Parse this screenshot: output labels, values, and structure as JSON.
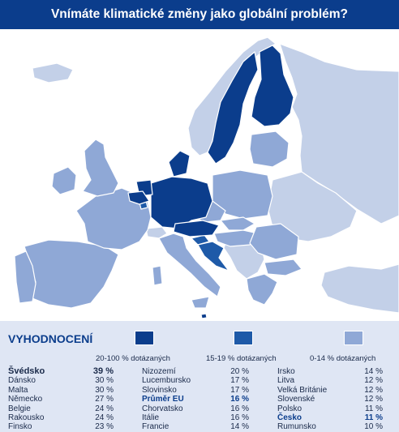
{
  "title": "Vnímáte klimatické změny jako globální problém?",
  "colors": {
    "title_bg": "#0b3d8c",
    "sea": "#ffffff",
    "background": "#dfe6f4",
    "cat_high": "#0b3d8c",
    "cat_mid": "#1e5aa8",
    "cat_low": "#8fa8d6",
    "nodata": "#c3d0e8"
  },
  "legend": {
    "heading": "VYHODNOCENÍ",
    "categories": [
      {
        "label": "20-100 % dotázaných",
        "color": "#0b3d8c"
      },
      {
        "label": "15-19 % dotázaných",
        "color": "#1e5aa8"
      },
      {
        "label": "0-14 % dotázaných",
        "color": "#8fa8d6"
      }
    ]
  },
  "columns": [
    [
      {
        "country": "Švédsko",
        "value": "39 %"
      },
      {
        "country": "Dánsko",
        "value": "30 %"
      },
      {
        "country": "Malta",
        "value": "30 %"
      },
      {
        "country": "Německo",
        "value": "27 %"
      },
      {
        "country": "Belgie",
        "value": "24 %"
      },
      {
        "country": "Rakousko",
        "value": "24 %"
      },
      {
        "country": "Finsko",
        "value": "23 %"
      }
    ],
    [
      {
        "country": "Nizozemí",
        "value": "20 %"
      },
      {
        "country": "Lucembursko",
        "value": "17 %"
      },
      {
        "country": "Slovinsko",
        "value": "17 %"
      },
      {
        "country": "Průměr EU",
        "value": "16 %"
      },
      {
        "country": "Chorvatsko",
        "value": "16 %"
      },
      {
        "country": "Itálie",
        "value": "16 %"
      },
      {
        "country": "Francie",
        "value": "14 %"
      }
    ],
    [
      {
        "country": "Irsko",
        "value": "14 %"
      },
      {
        "country": "Litva",
        "value": "12 %"
      },
      {
        "country": "Velká Británie",
        "value": "12 %"
      },
      {
        "country": "Slovenské",
        "value": "12 %"
      },
      {
        "country": "Polsko",
        "value": "11 %"
      },
      {
        "country": "Česko",
        "value": "11 %"
      },
      {
        "country": "Rumunsko",
        "value": "10 %"
      }
    ]
  ]
}
